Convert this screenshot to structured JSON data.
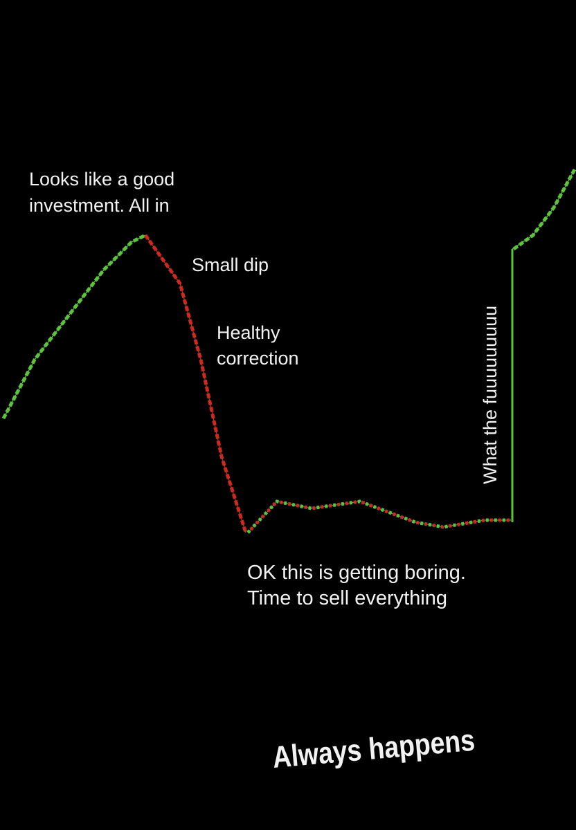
{
  "annotations": {
    "all_in": [
      "Looks like a good",
      "investment. All in"
    ],
    "small_dip": "Small dip",
    "healthy_correction": [
      "Healthy",
      "correction"
    ],
    "what_the": "What the fuuuuuuuuu",
    "boring": [
      "OK this is getting boring.",
      "Time to sell everything"
    ]
  },
  "caption": "Always happens"
}
